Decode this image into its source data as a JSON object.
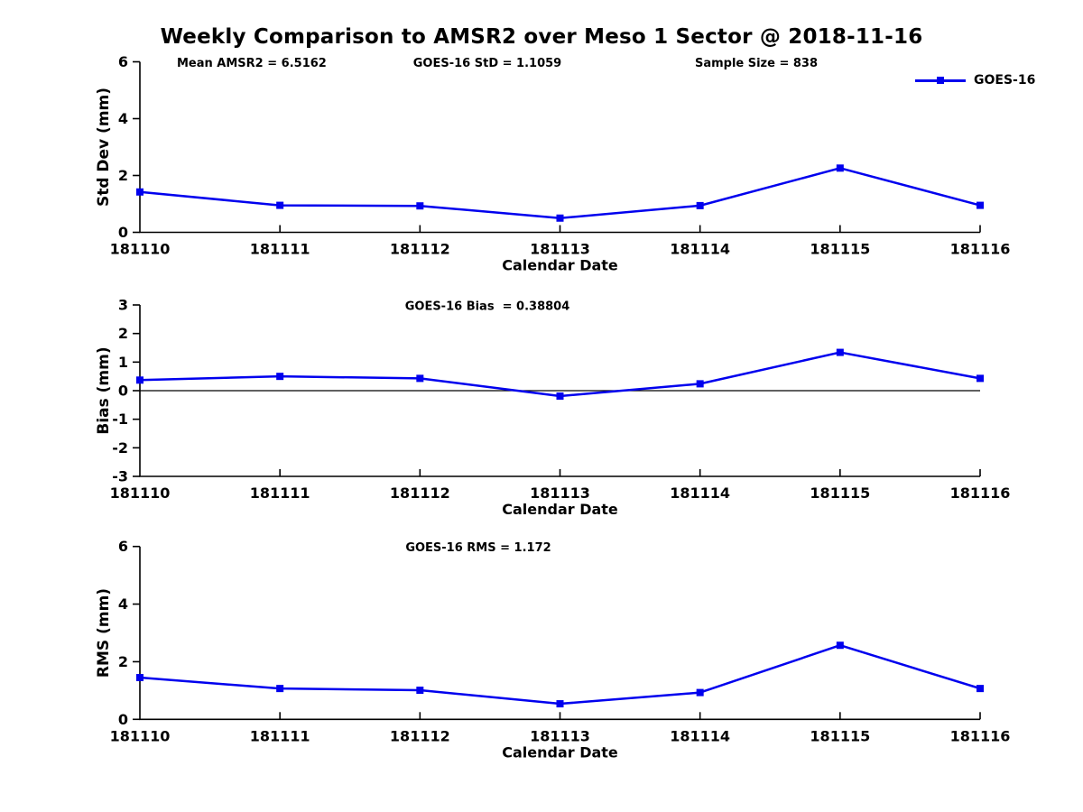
{
  "title": "Weekly Comparison to AMSR2 over Meso 1 Sector @ 2018-11-16",
  "legend": {
    "label": "GOES-16"
  },
  "colors": {
    "line": "#0000EE",
    "marker": "#0000EE",
    "axis": "#000000",
    "text": "#000000",
    "background": "#FFFFFF"
  },
  "chart_data": [
    {
      "type": "line",
      "name": "std-dev",
      "title": "",
      "categories": [
        "181110",
        "181111",
        "181112",
        "181113",
        "181114",
        "181115",
        "181116"
      ],
      "series": [
        {
          "name": "GOES-16",
          "values": [
            1.42,
            0.95,
            0.93,
            0.5,
            0.94,
            2.26,
            0.95
          ]
        }
      ],
      "xlabel": "Calendar Date",
      "ylabel": "Std Dev (mm)",
      "ylim": [
        0,
        6
      ],
      "yticks": [
        0,
        2,
        4,
        6
      ],
      "grid": false,
      "zero_line": false,
      "legend_position": "top-right",
      "annotations": [
        "Mean AMSR2 = 6.5162",
        "GOES-16 StD = 1.1059",
        "Sample Size = 838"
      ]
    },
    {
      "type": "line",
      "name": "bias",
      "title": "",
      "categories": [
        "181110",
        "181111",
        "181112",
        "181113",
        "181114",
        "181115",
        "181116"
      ],
      "series": [
        {
          "name": "GOES-16",
          "values": [
            0.37,
            0.5,
            0.43,
            -0.19,
            0.24,
            1.34,
            0.43
          ]
        }
      ],
      "xlabel": "Calendar Date",
      "ylabel": "Bias (mm)",
      "ylim": [
        -3,
        3
      ],
      "yticks": [
        -3,
        -2,
        -1,
        0,
        1,
        2,
        3
      ],
      "grid": false,
      "zero_line": true,
      "annotations": [
        "GOES-16 Bias  = 0.38804"
      ]
    },
    {
      "type": "line",
      "name": "rms",
      "title": "",
      "categories": [
        "181110",
        "181111",
        "181112",
        "181113",
        "181114",
        "181115",
        "181116"
      ],
      "series": [
        {
          "name": "GOES-16",
          "values": [
            1.45,
            1.07,
            1.01,
            0.54,
            0.93,
            2.57,
            1.07
          ]
        }
      ],
      "xlabel": "Calendar Date",
      "ylabel": "RMS (mm)",
      "ylim": [
        0,
        6
      ],
      "yticks": [
        0,
        2,
        4,
        6
      ],
      "grid": false,
      "zero_line": false,
      "annotations": [
        "GOES-16 RMS = 1.172"
      ]
    }
  ]
}
